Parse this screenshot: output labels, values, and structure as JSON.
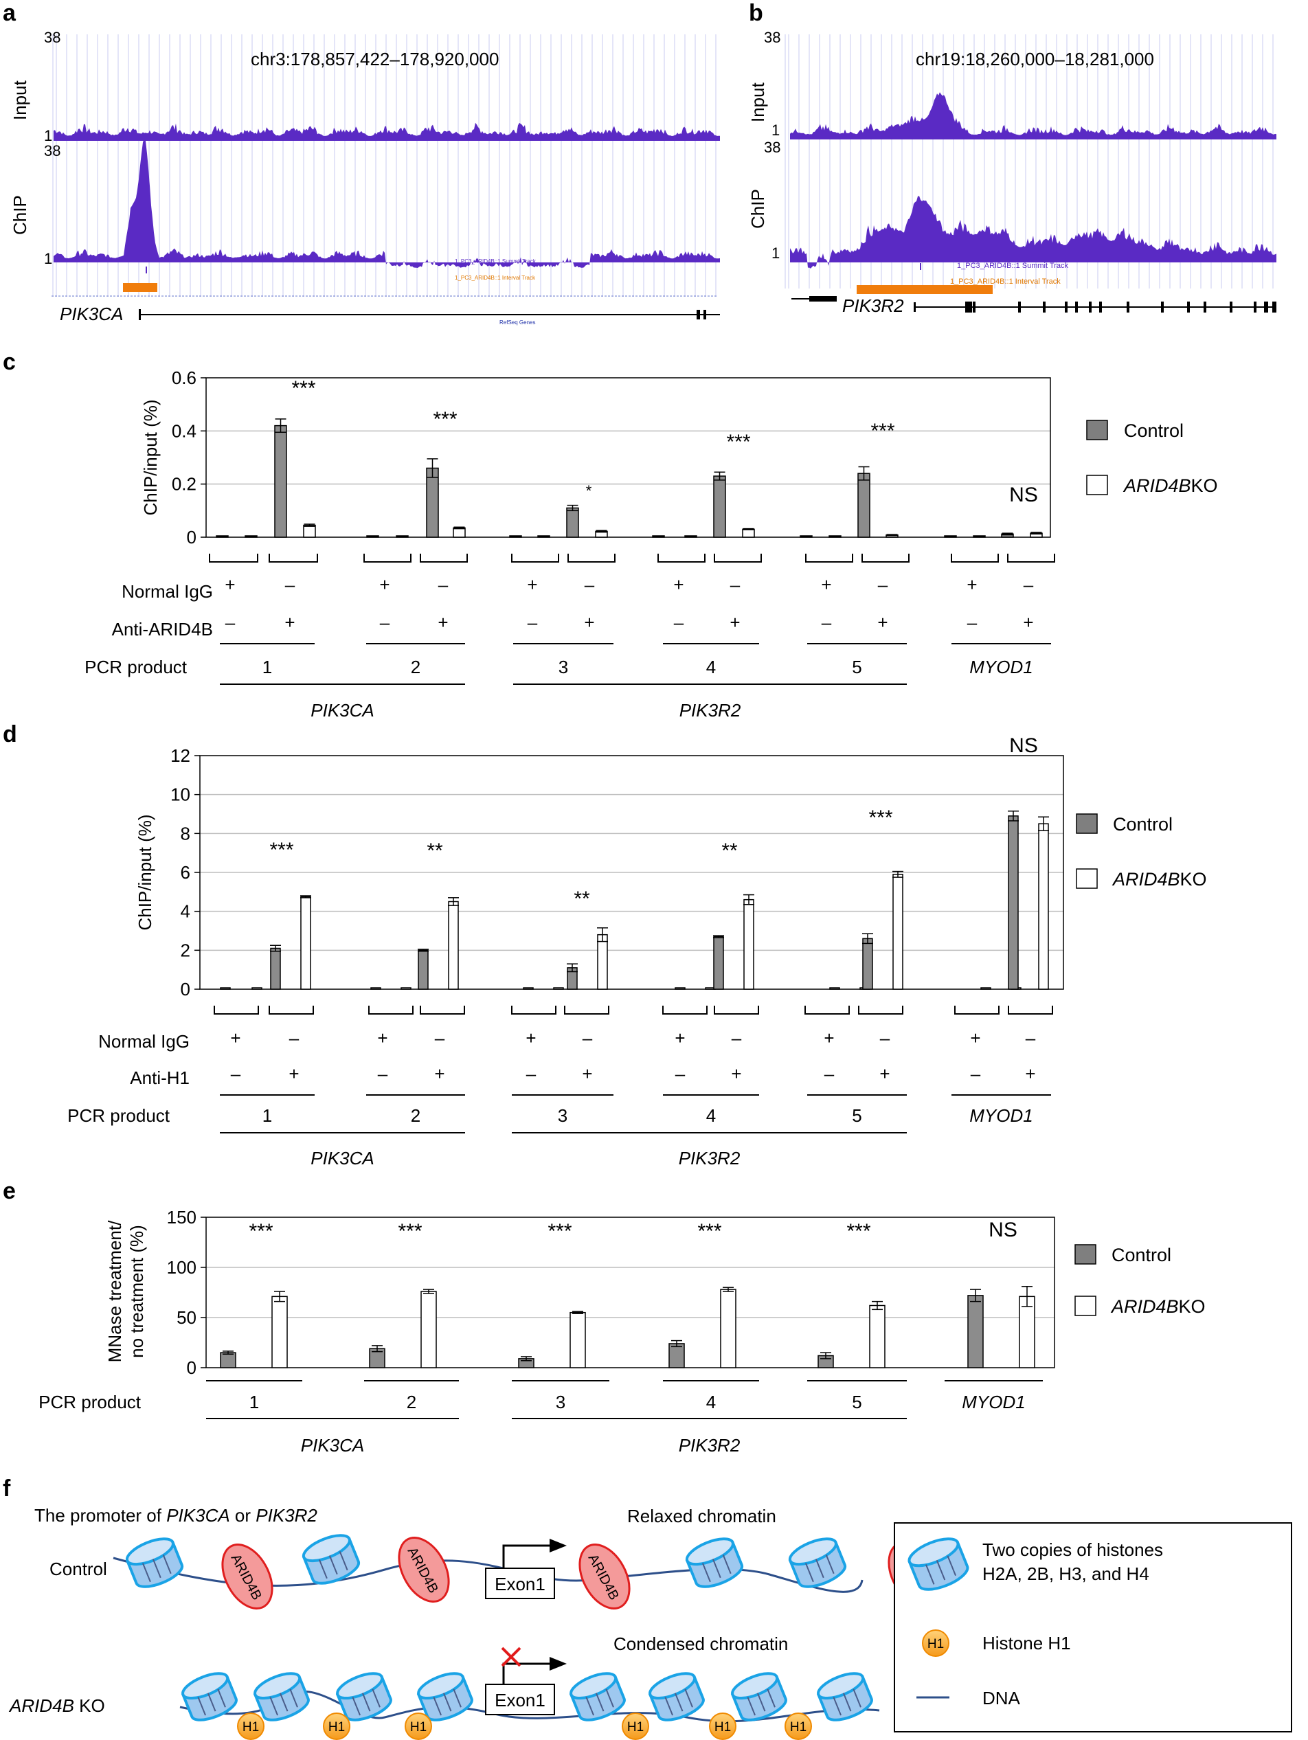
{
  "panels": {
    "a": {
      "letter": "a",
      "coords": "chr3:178,857,422–178,920,000",
      "input_label": "Input",
      "chip_label": "ChIP",
      "y_max": "38",
      "y_min": "1",
      "gene": "PIK3CA",
      "summit_track": "1_PC3_ARID4B::1 Summit Track",
      "interval_track": "1_PC3_ARID4B::1 Interval Track",
      "refseq": "RefSeq Genes"
    },
    "b": {
      "letter": "b",
      "coords": "chr19:18,260,000–18,281,000",
      "input_label": "Input",
      "chip_label": "ChIP",
      "y_max": "38",
      "y_min": "1",
      "gene": "PIK3R2",
      "summit_track": "1_PC3_ARID4B::1 Summit Track",
      "interval_track": "1_PC3_ARID4B::1 Interval Track"
    },
    "c": {
      "letter": "c",
      "row_normal": "Normal IgG",
      "row_anti": "Anti-ARID4B",
      "row_pcr": "PCR product",
      "pcr_products": [
        "1",
        "2",
        "3",
        "4",
        "5",
        "MYOD1"
      ],
      "gene_groups": [
        "PIK3CA",
        "PIK3R2"
      ],
      "plus": "+",
      "minus": "–",
      "legend": {
        "control": "Control",
        "ko_italic": "ARID4B",
        "ko_suffix": "KO"
      }
    },
    "d": {
      "letter": "d",
      "row_normal": "Normal IgG",
      "row_anti": "Anti-H1",
      "row_pcr": "PCR product",
      "pcr_products": [
        "1",
        "2",
        "3",
        "4",
        "5",
        "MYOD1"
      ],
      "gene_groups": [
        "PIK3CA",
        "PIK3R2"
      ],
      "plus": "+",
      "minus": "–",
      "legend": {
        "control": "Control",
        "ko_italic": "ARID4B",
        "ko_suffix": "KO"
      }
    },
    "e": {
      "letter": "e",
      "row_pcr": "PCR product",
      "pcr_products": [
        "1",
        "2",
        "3",
        "4",
        "5",
        "MYOD1"
      ],
      "gene_groups": [
        "PIK3CA",
        "PIK3R2"
      ],
      "legend": {
        "control": "Control",
        "ko_italic": "ARID4B",
        "ko_suffix": "KO"
      }
    },
    "f": {
      "letter": "f",
      "promoter_prefix": "The promoter of ",
      "promoter_gene1": "PIK3CA",
      "promoter_or": " or ",
      "promoter_gene2": "PIK3R2",
      "control_label": "Control",
      "ko_label_italic": "ARID4B",
      "ko_label_suffix": " KO",
      "relaxed": "Relaxed chromatin",
      "condensed": "Condensed chromatin",
      "exon": "Exon1",
      "arid4b": "ARID4B",
      "h1": "H1",
      "legend_histone_line1": "Two copies of histones",
      "legend_histone_line2": "H2A, 2B, H3, and H4",
      "legend_h1": "Histone H1",
      "legend_dna": "DNA"
    }
  },
  "chart_data": [
    {
      "id": "c",
      "type": "bar",
      "ylabel": "ChIP/input (%)",
      "ylim": [
        0,
        0.6
      ],
      "yticks": [
        "0",
        "0.2",
        "0.4",
        "0.6"
      ],
      "grid": true,
      "categories": [
        "1 Normal IgG",
        "1 Anti-ARID4B",
        "2 Normal IgG",
        "2 Anti-ARID4B",
        "3 Normal IgG",
        "3 Anti-ARID4B",
        "4 Normal IgG",
        "4 Anti-ARID4B",
        "5 Normal IgG",
        "5 Anti-ARID4B",
        "MYOD1 Normal IgG",
        "MYOD1 Anti-ARID4B"
      ],
      "series": [
        {
          "name": "Control",
          "values": [
            0.002,
            0.42,
            0.002,
            0.26,
            0.002,
            0.11,
            0.002,
            0.23,
            0.002,
            0.24,
            0.002,
            0.012
          ],
          "errors": [
            0.001,
            0.025,
            0.001,
            0.035,
            0.001,
            0.01,
            0.001,
            0.015,
            0.001,
            0.025,
            0.001,
            0.003
          ]
        },
        {
          "name": "ARID4B KO",
          "values": [
            0.002,
            0.045,
            0.002,
            0.035,
            0.002,
            0.022,
            0.002,
            0.03,
            0.002,
            0.008,
            0.002,
            0.015
          ],
          "errors": [
            0.001,
            0.004,
            0.001,
            0.003,
            0.001,
            0.003,
            0.001,
            0.002,
            0.001,
            0.002,
            0.001,
            0.003
          ]
        }
      ],
      "significance": [
        "***",
        "***",
        "*",
        "***",
        "***",
        "NS"
      ]
    },
    {
      "id": "d",
      "type": "bar",
      "ylabel": "ChIP/input (%)",
      "ylim": [
        0,
        12
      ],
      "yticks": [
        "0",
        "2",
        "4",
        "6",
        "8",
        "10",
        "12"
      ],
      "grid": true,
      "categories": [
        "1 Normal IgG",
        "1 Anti-H1",
        "2 Normal IgG",
        "2 Anti-H1",
        "3 Normal IgG",
        "3 Anti-H1",
        "4 Normal IgG",
        "4 Anti-H1",
        "5 Normal IgG",
        "5 Anti-H1",
        "MYOD1 Normal IgG",
        "MYOD1 Anti-H1"
      ],
      "series": [
        {
          "name": "Control",
          "values": [
            0,
            2.1,
            0,
            2.0,
            0,
            1.1,
            0,
            2.7,
            0,
            2.6,
            0,
            8.9
          ],
          "errors": [
            0,
            0.15,
            0,
            0.05,
            0,
            0.2,
            0,
            0.05,
            0,
            0.25,
            0,
            0.25
          ]
        },
        {
          "name": "ARID4B KO",
          "values": [
            0.04,
            4.75,
            0,
            4.5,
            0,
            2.8,
            0,
            4.6,
            0,
            5.9,
            0,
            8.5
          ],
          "errors": [
            0,
            0.05,
            0,
            0.2,
            0,
            0.35,
            0,
            0.25,
            0,
            0.15,
            0,
            0.35
          ]
        }
      ],
      "significance": [
        "***",
        "**",
        "**",
        "**",
        "***",
        "NS"
      ]
    },
    {
      "id": "e",
      "type": "bar",
      "ylabel": "MNase treatment/ no treatment (%)",
      "ylim": [
        0,
        150
      ],
      "yticks": [
        "0",
        "50",
        "100",
        "150"
      ],
      "grid": true,
      "categories": [
        "1",
        "2",
        "3",
        "4",
        "5",
        "MYOD1"
      ],
      "series": [
        {
          "name": "Control",
          "values": [
            15,
            19,
            9,
            24,
            12,
            72
          ],
          "errors": [
            1.5,
            3,
            2,
            3,
            3,
            6
          ]
        },
        {
          "name": "ARID4B KO",
          "values": [
            71,
            76,
            55,
            78,
            62,
            71
          ],
          "errors": [
            5,
            2,
            1,
            2,
            4,
            10
          ]
        }
      ],
      "significance": [
        "***",
        "***",
        "***",
        "***",
        "***",
        "NS"
      ]
    }
  ]
}
